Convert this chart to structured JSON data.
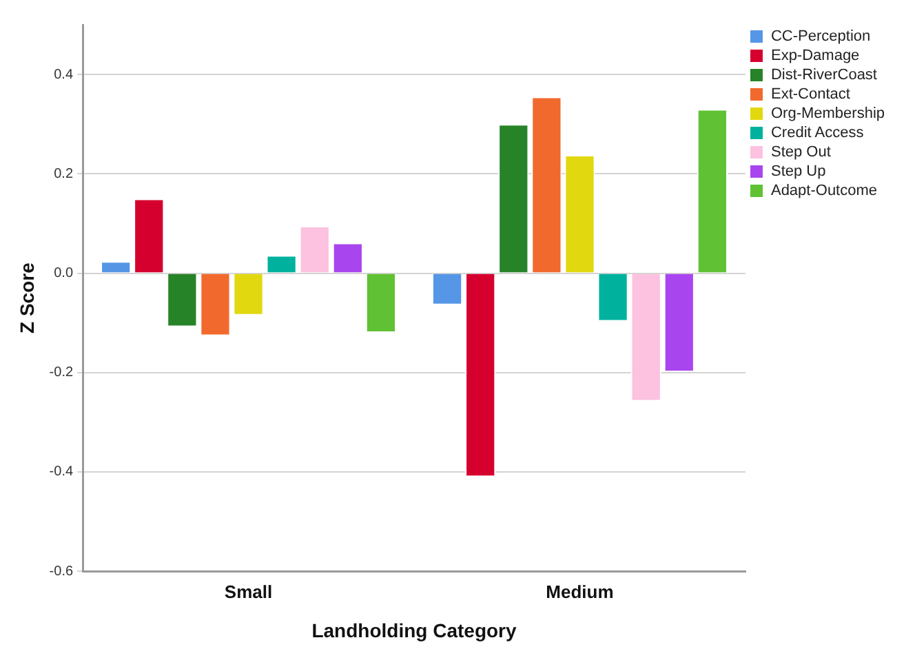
{
  "chart_data": {
    "type": "bar",
    "xlabel": "Landholding Category",
    "ylabel": "Z Score",
    "categories": [
      "Small",
      "Medium"
    ],
    "series": [
      {
        "name": "CC-Perception",
        "color": "#5596e6",
        "values": [
          0.024,
          -0.064
        ]
      },
      {
        "name": "Exp-Damage",
        "color": "#d6002f",
        "values": [
          0.15,
          -0.41
        ]
      },
      {
        "name": "Dist-RiverCoast",
        "color": "#278327",
        "values": [
          -0.108,
          0.3
        ]
      },
      {
        "name": "Ext-Contact",
        "color": "#f2692d",
        "values": [
          -0.126,
          0.355
        ]
      },
      {
        "name": "Org-Membership",
        "color": "#e2d80f",
        "values": [
          -0.085,
          0.238
        ]
      },
      {
        "name": "Credit Access",
        "color": "#00b29e",
        "values": [
          0.036,
          -0.097
        ]
      },
      {
        "name": "Step Out",
        "color": "#fcc2df",
        "values": [
          0.095,
          -0.258
        ]
      },
      {
        "name": "Step Up",
        "color": "#a945ef",
        "values": [
          0.061,
          -0.199
        ]
      },
      {
        "name": "Adapt-Outcome",
        "color": "#5fc133",
        "values": [
          -0.12,
          0.33
        ]
      }
    ],
    "ylim": [
      -0.6,
      0.5
    ],
    "yticks": [
      {
        "value": -0.6,
        "label": "-0.6"
      },
      {
        "value": -0.4,
        "label": "-0.4"
      },
      {
        "value": -0.2,
        "label": "-0.2"
      },
      {
        "value": 0,
        "label": "0.0"
      },
      {
        "value": 0.2,
        "label": "0.2"
      },
      {
        "value": 0.4,
        "label": "0.4"
      }
    ],
    "grid": "y",
    "legend": "top right"
  }
}
